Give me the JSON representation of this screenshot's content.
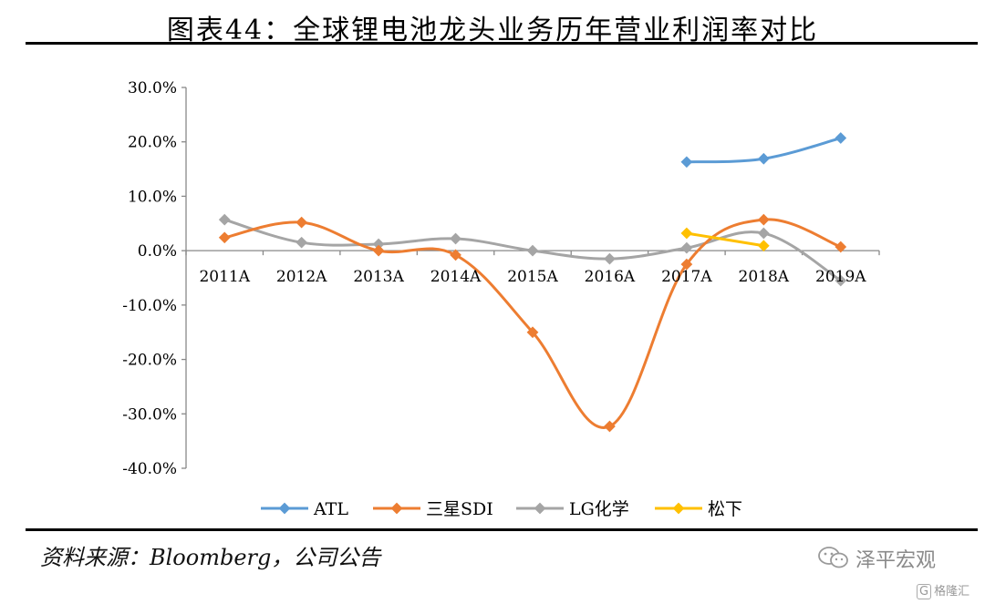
{
  "title": "图表44：全球锂电池龙头业务历年营业利润率对比",
  "source": "资料来源：Bloomberg，公司公告",
  "watermark": {
    "brand": "泽平宏观",
    "sub": "格隆汇",
    "sub_icon": "G"
  },
  "chart_data": {
    "type": "line",
    "categories": [
      "2011A",
      "2012A",
      "2013A",
      "2014A",
      "2015A",
      "2016A",
      "2017A",
      "2018A",
      "2019A"
    ],
    "y_ticks": [
      "30.0%",
      "20.0%",
      "10.0%",
      "0.0%",
      "-10.0%",
      "-20.0%",
      "-30.0%",
      "-40.0%"
    ],
    "ylim": [
      -40,
      30
    ],
    "y_unit": "%",
    "grid": false,
    "legend_position": "bottom",
    "series": [
      {
        "name": "ATL",
        "color": "#5B9BD5",
        "values": [
          null,
          null,
          null,
          null,
          null,
          null,
          16.3,
          16.9,
          20.7
        ]
      },
      {
        "name": "三星SDI",
        "color": "#ED7D31",
        "values": [
          2.4,
          5.2,
          0.0,
          -0.8,
          -15.0,
          -32.3,
          -2.5,
          5.7,
          0.7
        ]
      },
      {
        "name": "LG化学",
        "color": "#A5A5A5",
        "values": [
          5.7,
          1.5,
          1.2,
          2.2,
          0.0,
          -1.5,
          0.5,
          3.2,
          -5.5
        ]
      },
      {
        "name": "松下",
        "color": "#FFC000",
        "values": [
          null,
          null,
          null,
          null,
          null,
          null,
          3.2,
          0.9,
          null
        ]
      }
    ]
  }
}
